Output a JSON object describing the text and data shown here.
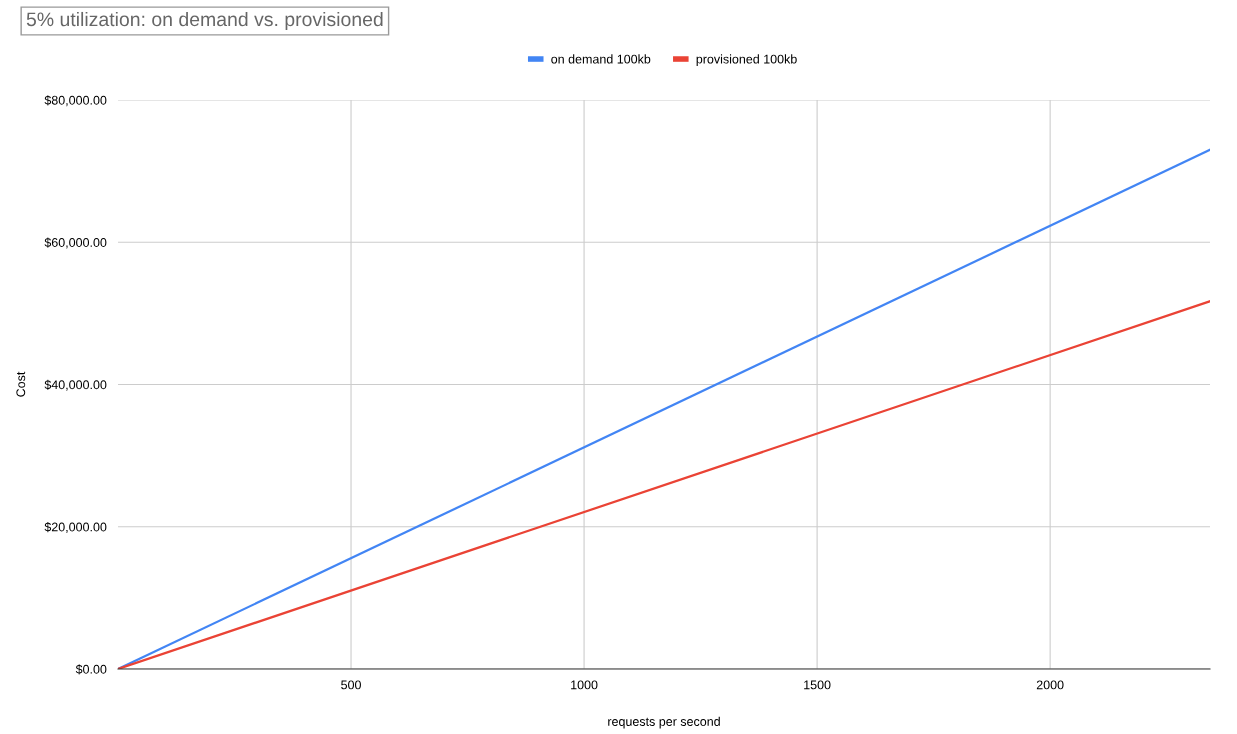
{
  "chart_data": {
    "type": "line",
    "title": "5% utilization: on demand vs. provisioned",
    "xlabel": "requests per second",
    "ylabel": "Cost",
    "x": [
      0,
      2343
    ],
    "series": [
      {
        "name": "on demand 100kb",
        "color": "#4285f4",
        "values": [
          0,
          73000
        ]
      },
      {
        "name": "provisioned 100kb",
        "color": "#ea4335",
        "values": [
          0,
          51700
        ]
      }
    ],
    "xlim": [
      0,
      2343
    ],
    "xticks": [
      500,
      1000,
      1500,
      2000
    ],
    "ylim": [
      0,
      80000
    ],
    "yticks": [
      {
        "value": 0,
        "label": "$0.00"
      },
      {
        "value": 20000,
        "label": "$20,000.00"
      },
      {
        "value": 40000,
        "label": "$40,000.00"
      },
      {
        "value": 60000,
        "label": "$60,000.00"
      },
      {
        "value": 80000,
        "label": "$80,000.00"
      }
    ],
    "grid": true,
    "legend": "top",
    "marker": "none",
    "line_style": "solid"
  }
}
